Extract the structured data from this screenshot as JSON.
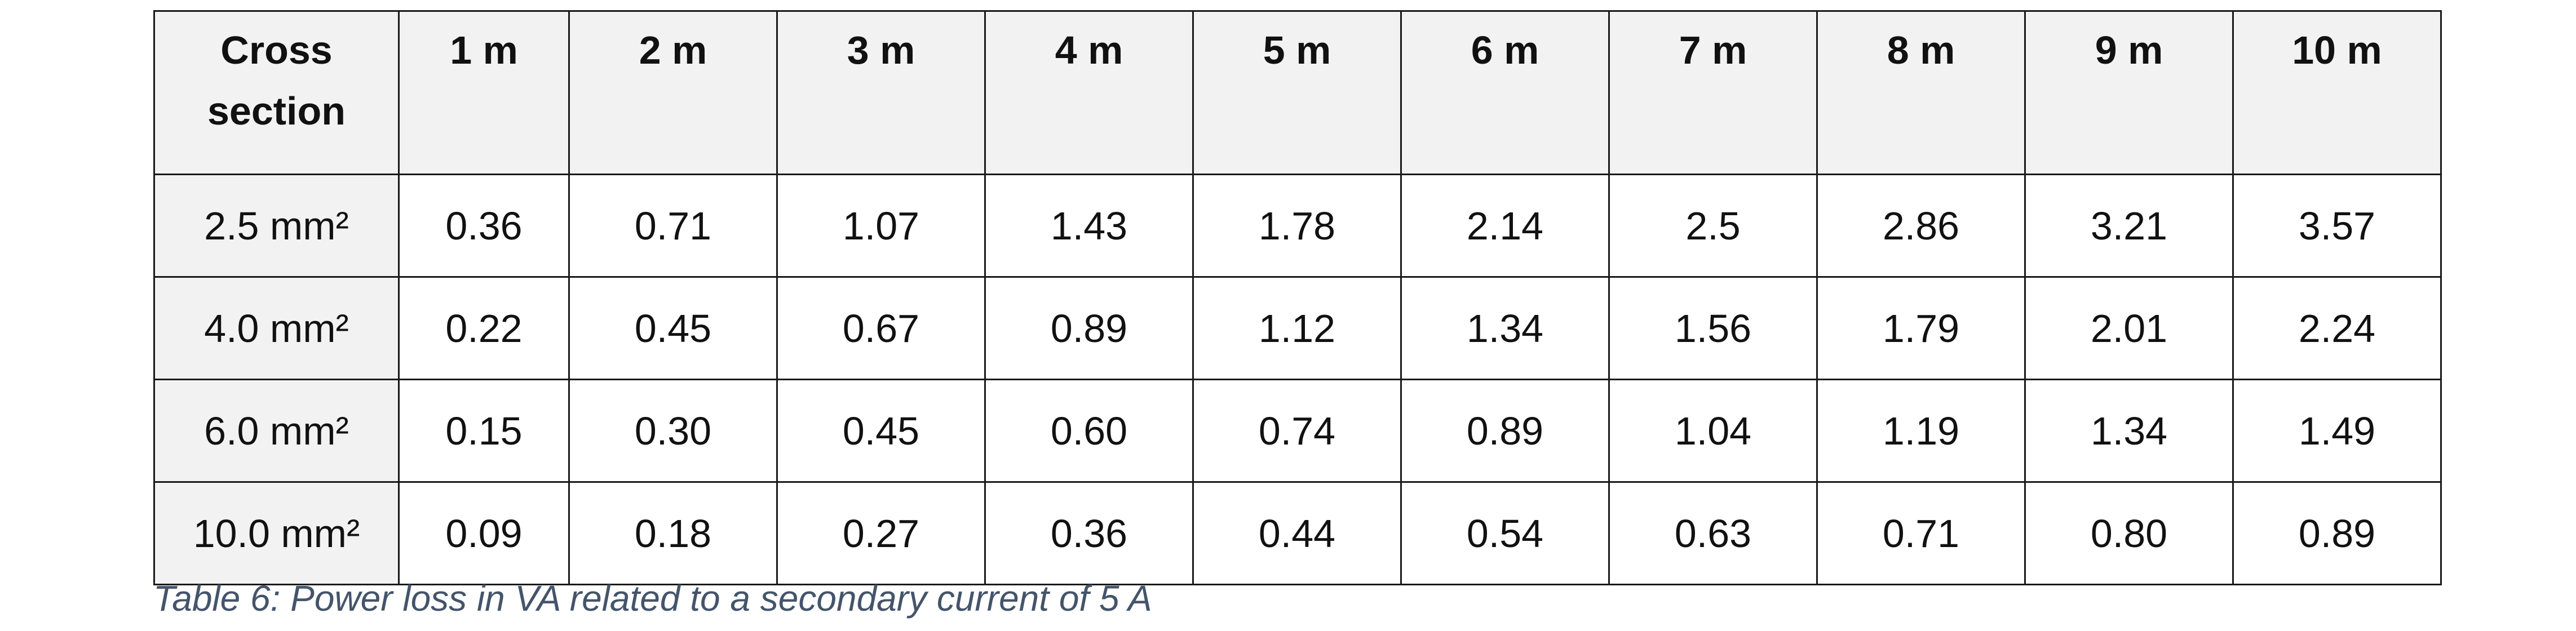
{
  "table": {
    "header": [
      "Cross section",
      "1 m",
      "2 m",
      "3 m",
      "4 m",
      "5 m",
      "6 m",
      "7 m",
      "8 m",
      "9 m",
      "10 m"
    ],
    "rows": [
      [
        "2.5 mm²",
        "0.36",
        "0.71",
        "1.07",
        "1.43",
        "1.78",
        "2.14",
        "2.5",
        "2.86",
        "3.21",
        "3.57"
      ],
      [
        "4.0 mm²",
        "0.22",
        "0.45",
        "0.67",
        "0.89",
        "1.12",
        "1.34",
        "1.56",
        "1.79",
        "2.01",
        "2.24"
      ],
      [
        "6.0 mm²",
        "0.15",
        "0.30",
        "0.45",
        "0.60",
        "0.74",
        "0.89",
        "1.04",
        "1.19",
        "1.34",
        "1.49"
      ],
      [
        "10.0 mm²",
        "0.09",
        "0.18",
        "0.27",
        "0.36",
        "0.44",
        "0.54",
        "0.63",
        "0.71",
        "0.80",
        "0.89"
      ]
    ],
    "caption": "Table 6: Power loss in VA related to a secondary current of 5 A"
  }
}
